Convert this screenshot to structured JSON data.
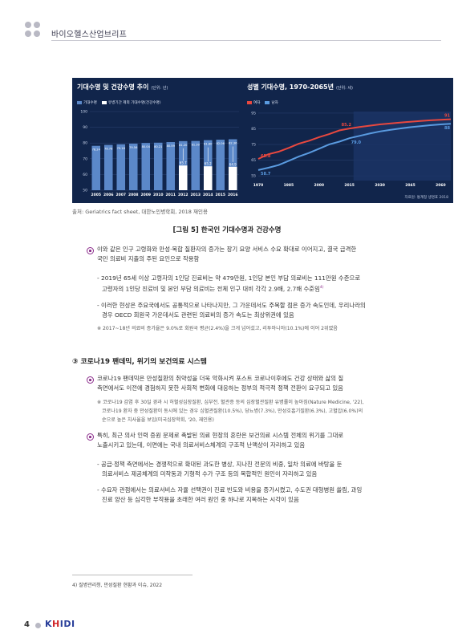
{
  "header": {
    "title": "바이오헬스산업브리프"
  },
  "figure": {
    "left_chart": {
      "title": "기대수명 및 건강수명 추이",
      "unit": "(단위: 년)",
      "legend": [
        "기대수명",
        "유병기간 제외 기대수명(건강수명)"
      ]
    },
    "right_chart": {
      "title": "성별 기대수명, 1970-2065년",
      "unit": "(단위: 세)",
      "legend": [
        "여자",
        "남자"
      ],
      "source": "자료원: 통계청 생명표 2018"
    }
  },
  "chart_data": [
    {
      "type": "bar",
      "title": "기대수명 및 건강수명 추이",
      "categories": [
        "2005",
        "2006",
        "2007",
        "2008",
        "2009",
        "2010",
        "2011",
        "2012",
        "2013",
        "2014",
        "2015",
        "2016"
      ],
      "series": [
        {
          "name": "기대수명",
          "values": [
            78.2,
            78.8,
            79.2,
            79.6,
            80.0,
            80.2,
            80.6,
            81.2,
            81.3,
            81.8,
            82.1,
            82.4
          ]
        },
        {
          "name": "유병기간 제외 기대수명(건강수명)",
          "values": [
            null,
            null,
            null,
            null,
            null,
            null,
            null,
            65.7,
            null,
            65.2,
            null,
            64.9
          ]
        }
      ],
      "data_labels": [
        "78.24",
        "78.78",
        "79.18",
        "79.56",
        "80.04",
        "80.21",
        "80.59",
        "81.20",
        "81.30",
        "81.80",
        "82.06",
        "82.36"
      ],
      "health_labels": [
        "65.7",
        "65.2",
        "64.9"
      ],
      "yticks": [
        "100",
        "90",
        "80",
        "70",
        "60",
        "50"
      ],
      "ylim": [
        50,
        100
      ],
      "colors": {
        "life": "#5b88c9",
        "health": "#ffffff"
      }
    },
    {
      "type": "line",
      "title": "성별 기대수명, 1970-2065년",
      "x": [
        1970,
        1975,
        1980,
        1985,
        1990,
        1995,
        2000,
        2005,
        2010,
        2015,
        2020,
        2025,
        2030,
        2035,
        2040,
        2045,
        2050,
        2055,
        2060,
        2065
      ],
      "series": [
        {
          "name": "여자",
          "values": [
            65.8,
            68.8,
            70.4,
            72.8,
            75.5,
            77.4,
            79.7,
            81.6,
            84.0,
            85.2,
            86.2,
            87.0,
            87.8,
            88.4,
            89.0,
            89.5,
            90.0,
            90.4,
            90.8,
            91.1
          ]
        },
        {
          "name": "남자",
          "values": [
            58.7,
            60.2,
            61.9,
            64.6,
            67.3,
            69.6,
            72.3,
            75.1,
            76.8,
            79.0,
            80.5,
            82.0,
            83.3,
            84.3,
            85.2,
            86.0,
            86.7,
            87.3,
            87.8,
            88.2
          ]
        }
      ],
      "labels": [
        "65.8",
        "58.7",
        "85.2",
        "79.0",
        "91",
        "88"
      ],
      "xticks": [
        "1970",
        "1985",
        "2000",
        "2015",
        "2030",
        "2045",
        "2060"
      ],
      "yticks": [
        "95",
        "85",
        "75",
        "65",
        "55"
      ],
      "ylim": [
        52,
        96
      ],
      "colors": {
        "female": "#e8483f",
        "male": "#5a9be0"
      }
    }
  ],
  "source_caption": "출처: Geriatrics fact sheet, 대한노인병학회, 2018 재인용",
  "figure_caption": "[그림 5]  한국인 기대수명과 건강수명",
  "bullets_1": {
    "main_line1": "이와 같은 인구 고령화와 만성·복합 질환자의 증가는 장기 요양 서비스 수요 확대로 이어지고, 결국 급격한",
    "main_line2": "국민 의료비 지출의 주된 요인으로 작용함",
    "sub1_line1": "- 2019년 65세 이상 고령자의 1인당 진료비는 약 479만원, 1인당 본인 부담 의료비는 111만원 수준으로",
    "sub1_line2": "고령자의 1인당 진료비 및 본인 부담 의료비는 전체 인구 대비 각각 2.9배, 2.7배 수준임",
    "sub1_sup": "4)",
    "sub2_line1": "- 이러한 현상은 주요국에서도 공통적으로 나타나지만, 그 가운데서도 주목할 점은 증가 속도인데, 우리나라의",
    "sub2_line2": "경우 OECD 회원국 가운데서도 관련된 의료비의 증가 속도는 최상위권에 있음",
    "note": "※ 2017~18년 의료비 증가율은 9.0%로 회원국 평균(2.4%)을 크게 넘어섰고, 리투아니아(10.1%)에 이어 2위였음"
  },
  "section_heading": "③ 코로나19 팬데믹, 위기의 보건의료 시스템",
  "bullets_2": {
    "main_line1": "코로나19 팬데믹은 만성질환의 취약성을 더욱 악화시켜 포스트 코로나이후에도 건강 상태와 삶의 질",
    "main_line2": "측면에서도 이전에 경험하지 못한 사회적 변화에 대응하는 정부의 적극적 정책 전환이 요구되고 있음",
    "note_line1": "※ 코로나19 감염 후 30일 경과 시 허혈성심장질환, 심부전, 혈관증 등의 심장혈관질환 유병률이 높아짐(Nature Medicine, '22),",
    "note_line2": "코로나19 환자 중 만성질환이 동시에 있는 경우 심혈관질환(10.5%), 당뇨병(7.3%), 만성호흡기질환(6.3%), 고혈압(6.0%)의",
    "note_line3": "순으로 높은 치사율을 보임(미국심장학회, '20, 재인용)"
  },
  "bullets_3": {
    "main_line1": "특히, 최근 의사 인력 증원 문제로 촉발된 의료 현장의 혼란은 보건의료 시스템 전체의 위기를 그대로",
    "main_line2": "노출시키고 있는데, 이면에는 국내 의료서비스체계의 구조적 난맥상이 자리하고 있음",
    "sub1_line1": "- 공급·정책 측면에서는 경쟁적으로 확대된 과도한 병상, 지나친 전문의 비중, 일차 의료에 바탕을 둔",
    "sub1_line2": "의료서비스 제공체계의 미작동과 기형적 수가 구조 등의 복합적인 원인이 자리하고 있음",
    "sub2_line1": "- 수요자 관점에서는 의료서비스 자율 선택권이 진료 빈도와 비용을 증가시켰고, 수도권 대형병원 쏠림, 과잉",
    "sub2_line2": "진료 양산 등 심각한 부작용을 초래한 여러 원인 중 하나로 지목하는 시각이 있음"
  },
  "footnote": "4)   질병관리청, 만성질환 현황과 이슈, 2022",
  "footer": {
    "page": "4",
    "logo_k": "K",
    "logo_h": "H",
    "logo_rest": "IDI"
  }
}
